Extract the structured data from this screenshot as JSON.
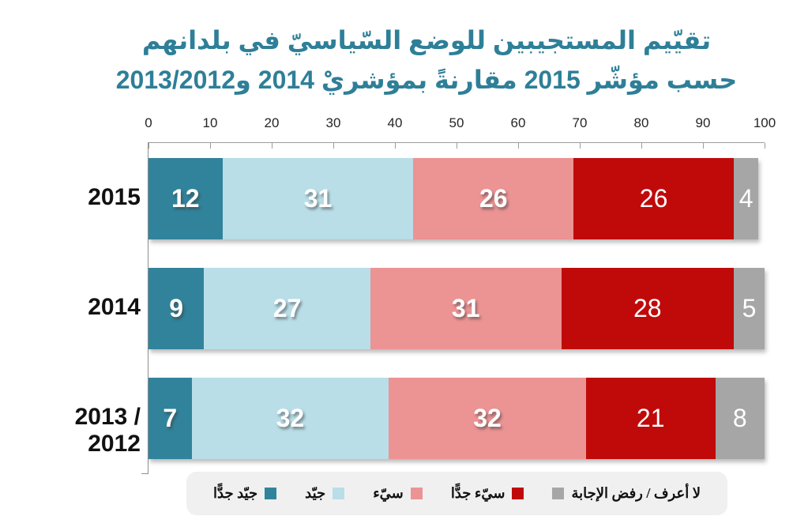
{
  "title": {
    "line1": "تقيّيم المستجيبين للوضع السّياسيّ في بلدانهم",
    "line2": "حسب مؤشّر 2015 مقارنةً بمؤشريْ 2014 و2013/2012"
  },
  "colors": {
    "title_teal": "#2E7F98",
    "very_good": "#31839B",
    "good": "#B9DEE8",
    "bad": "#EC9394",
    "very_bad": "#C00A0A",
    "dont_know": "#A6A6A6",
    "legend_bg": "#F0F0F1",
    "axis_line": "#9c9c9c"
  },
  "axis": {
    "min": 0,
    "max": 100,
    "step": 10,
    "ticks": [
      0,
      10,
      20,
      30,
      40,
      50,
      60,
      70,
      80,
      90,
      100
    ]
  },
  "chart_data": {
    "type": "bar",
    "orientation": "horizontal",
    "stacked": true,
    "title": "تقيّيم المستجيبين للوضع السّياسيّ في بلدانهم حسب مؤشّر 2015 مقارنةً بمؤشريْ 2014 و2013/2012",
    "categories": [
      "2015",
      "2014",
      "2013 / 2012"
    ],
    "series": [
      {
        "name": "جيّد جدًّا",
        "color": "#31839B",
        "values": [
          12,
          9,
          7
        ]
      },
      {
        "name": "جيّد",
        "color": "#B9DEE8",
        "values": [
          31,
          27,
          32
        ]
      },
      {
        "name": "سيّء",
        "color": "#EC9394",
        "values": [
          26,
          31,
          32
        ]
      },
      {
        "name": "سيّء جدًّا",
        "color": "#C00A0A",
        "values": [
          26,
          28,
          21
        ]
      },
      {
        "name": "لا أعرف / رفض الإجابة",
        "color": "#A6A6A6",
        "values": [
          4,
          5,
          8
        ]
      }
    ],
    "xlabel": "",
    "ylabel": "",
    "xlim": [
      0,
      100
    ],
    "grid": false,
    "legend_position": "bottom",
    "data_labels": true
  },
  "legend": {
    "items": [
      {
        "label": "جيّد جدًّا",
        "color": "#31839B"
      },
      {
        "label": "جيّد",
        "color": "#B9DEE8"
      },
      {
        "label": "سيّء",
        "color": "#EC9394"
      },
      {
        "label": "سيّء جدًّا",
        "color": "#C00A0A"
      },
      {
        "label": "لا أعرف / رفض الإجابة",
        "color": "#A6A6A6"
      }
    ]
  }
}
